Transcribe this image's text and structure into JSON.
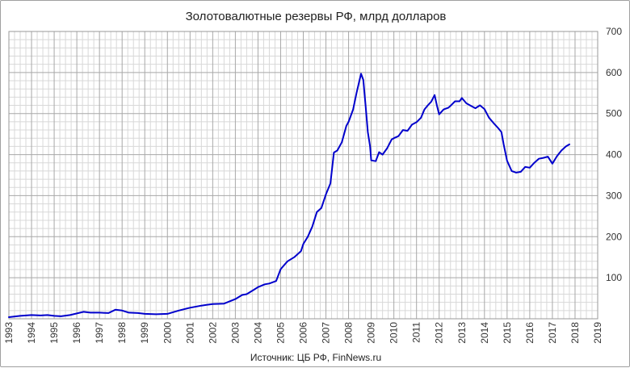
{
  "chart_data": {
    "type": "line",
    "title": "Золотовалютные резервы РФ, млрд долларов",
    "source": "Источник: ЦБ РФ, FinNews.ru",
    "xlabel": "",
    "ylabel": "",
    "xlim": [
      1993,
      2019
    ],
    "ylim": [
      0,
      700
    ],
    "x_ticks": [
      "1993",
      "1994",
      "1995",
      "1996",
      "1997",
      "1998",
      "1999",
      "2000",
      "2001",
      "2002",
      "2003",
      "2004",
      "2005",
      "2006",
      "2007",
      "2008",
      "2009",
      "2010",
      "2011",
      "2012",
      "2013",
      "2014",
      "2015",
      "2016",
      "2017",
      "2018",
      "2019"
    ],
    "y_ticks": [
      "100",
      "200",
      "300",
      "400",
      "500",
      "600",
      "700"
    ],
    "y_axis_position": "right",
    "grid": true,
    "legend": "none",
    "colors": {
      "line": "#0000cc",
      "grid_major": "#a8a8a8",
      "grid_minor": "#d8d8d8"
    },
    "series": [
      {
        "points": [
          [
            1993.0,
            4
          ],
          [
            1993.5,
            7
          ],
          [
            1994.0,
            9
          ],
          [
            1994.4,
            8
          ],
          [
            1994.7,
            9
          ],
          [
            1995.0,
            7
          ],
          [
            1995.3,
            6
          ],
          [
            1995.7,
            9
          ],
          [
            1996.0,
            13
          ],
          [
            1996.3,
            17
          ],
          [
            1996.6,
            15
          ],
          [
            1997.0,
            15
          ],
          [
            1997.4,
            14
          ],
          [
            1997.7,
            22
          ],
          [
            1998.0,
            20
          ],
          [
            1998.3,
            15
          ],
          [
            1998.7,
            14
          ],
          [
            1999.0,
            12
          ],
          [
            1999.5,
            11
          ],
          [
            2000.0,
            12
          ],
          [
            2000.5,
            20
          ],
          [
            2001.0,
            27
          ],
          [
            2001.5,
            32
          ],
          [
            2002.0,
            36
          ],
          [
            2002.5,
            37
          ],
          [
            2003.0,
            48
          ],
          [
            2003.3,
            58
          ],
          [
            2003.5,
            60
          ],
          [
            2003.8,
            70
          ],
          [
            2004.0,
            77
          ],
          [
            2004.3,
            84
          ],
          [
            2004.5,
            86
          ],
          [
            2004.8,
            92
          ],
          [
            2005.0,
            121
          ],
          [
            2005.3,
            140
          ],
          [
            2005.6,
            150
          ],
          [
            2005.9,
            165
          ],
          [
            2006.0,
            182
          ],
          [
            2006.2,
            200
          ],
          [
            2006.4,
            225
          ],
          [
            2006.6,
            260
          ],
          [
            2006.8,
            270
          ],
          [
            2007.0,
            303
          ],
          [
            2007.2,
            330
          ],
          [
            2007.35,
            405
          ],
          [
            2007.5,
            410
          ],
          [
            2007.7,
            430
          ],
          [
            2007.9,
            470
          ],
          [
            2008.0,
            480
          ],
          [
            2008.2,
            510
          ],
          [
            2008.35,
            550
          ],
          [
            2008.55,
            597
          ],
          [
            2008.65,
            582
          ],
          [
            2008.75,
            520
          ],
          [
            2008.85,
            455
          ],
          [
            2008.95,
            420
          ],
          [
            2009.0,
            386
          ],
          [
            2009.2,
            384
          ],
          [
            2009.35,
            406
          ],
          [
            2009.5,
            400
          ],
          [
            2009.7,
            415
          ],
          [
            2009.9,
            437
          ],
          [
            2010.0,
            440
          ],
          [
            2010.2,
            445
          ],
          [
            2010.4,
            460
          ],
          [
            2010.6,
            458
          ],
          [
            2010.8,
            473
          ],
          [
            2011.0,
            479
          ],
          [
            2011.2,
            490
          ],
          [
            2011.35,
            510
          ],
          [
            2011.5,
            520
          ],
          [
            2011.65,
            529
          ],
          [
            2011.8,
            545
          ],
          [
            2011.9,
            520
          ],
          [
            2012.0,
            498
          ],
          [
            2012.2,
            510
          ],
          [
            2012.4,
            514
          ],
          [
            2012.5,
            519
          ],
          [
            2012.7,
            530
          ],
          [
            2012.9,
            530
          ],
          [
            2013.0,
            538
          ],
          [
            2013.2,
            525
          ],
          [
            2013.4,
            519
          ],
          [
            2013.6,
            513
          ],
          [
            2013.8,
            520
          ],
          [
            2014.0,
            511
          ],
          [
            2014.2,
            490
          ],
          [
            2014.4,
            477
          ],
          [
            2014.6,
            465
          ],
          [
            2014.75,
            455
          ],
          [
            2014.85,
            425
          ],
          [
            2015.0,
            385
          ],
          [
            2015.2,
            360
          ],
          [
            2015.4,
            356
          ],
          [
            2015.6,
            358
          ],
          [
            2015.8,
            370
          ],
          [
            2016.0,
            368
          ],
          [
            2016.2,
            380
          ],
          [
            2016.4,
            390
          ],
          [
            2016.6,
            392
          ],
          [
            2016.8,
            395
          ],
          [
            2017.0,
            378
          ],
          [
            2017.2,
            396
          ],
          [
            2017.4,
            410
          ],
          [
            2017.6,
            420
          ],
          [
            2017.75,
            425
          ]
        ]
      }
    ]
  }
}
